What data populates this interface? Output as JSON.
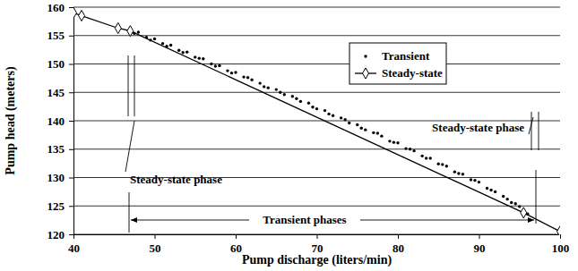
{
  "chart_data": {
    "type": "scatter",
    "xlabel": "Pump discharge (liters/min)",
    "ylabel": "Pump head (meters)",
    "xlim": [
      40,
      100
    ],
    "ylim": [
      120,
      160
    ],
    "xticks": [
      40,
      50,
      60,
      70,
      80,
      90,
      100
    ],
    "yticks": [
      120,
      125,
      130,
      135,
      140,
      145,
      150,
      155,
      160
    ],
    "grid": true,
    "legend": "upper right",
    "annotations": [
      "Steady-state phase",
      "Steady-state phase",
      "Transient phases"
    ],
    "series": [
      {
        "name": "Transient",
        "type": "scatter",
        "marker": "circle",
        "color": "#000000",
        "x": [
          47,
          47.5,
          48,
          49,
          49.5,
          50,
          51,
          51.5,
          52,
          53,
          53.5,
          54,
          55,
          55.5,
          56,
          57,
          57.5,
          58,
          59,
          59.5,
          60,
          61,
          61.5,
          62,
          63,
          63.5,
          64,
          65,
          65.5,
          66,
          67,
          67.5,
          68,
          69,
          69.5,
          70,
          71,
          71.5,
          72,
          73,
          73.5,
          74,
          75,
          75.5,
          76,
          77,
          77.5,
          78,
          79,
          79.5,
          80,
          81,
          81.5,
          82,
          83,
          83.5,
          84,
          85,
          85.5,
          86,
          87,
          87.5,
          88,
          89,
          89.5,
          90,
          91,
          91.5,
          92,
          93,
          93.5,
          94,
          94.5,
          95,
          95.5,
          96
        ],
        "values": [
          155.9,
          155.4,
          155.6,
          154.7,
          154.2,
          154.4,
          153.6,
          153.1,
          153.3,
          152.4,
          152.0,
          152.1,
          151.2,
          151.0,
          150.9,
          150.0,
          149.6,
          149.7,
          148.8,
          148.4,
          148.5,
          147.7,
          147.6,
          147.2,
          146.6,
          146.0,
          145.8,
          145.5,
          145.0,
          144.6,
          144.3,
          143.9,
          143.4,
          143.1,
          142.4,
          142.1,
          141.8,
          141.2,
          140.9,
          140.5,
          140.2,
          139.6,
          139.3,
          138.7,
          138.4,
          137.9,
          137.8,
          137.3,
          136.4,
          136.2,
          136.1,
          135.1,
          135.0,
          134.7,
          133.8,
          133.4,
          133.4,
          132.4,
          132.3,
          132.0,
          131.0,
          130.7,
          130.6,
          129.6,
          129.5,
          129.2,
          128.1,
          127.8,
          127.5,
          126.7,
          126.2,
          125.6,
          125.4,
          124.9,
          124.0,
          123.6
        ]
      },
      {
        "name": "Steady-state",
        "type": "line",
        "marker": "diamond",
        "color": "#000000",
        "x": [
          40,
          41,
          45.5,
          47,
          95.5,
          100
        ],
        "values": [
          159,
          158.5,
          156.3,
          155.8,
          123.8,
          120.5
        ]
      }
    ]
  }
}
